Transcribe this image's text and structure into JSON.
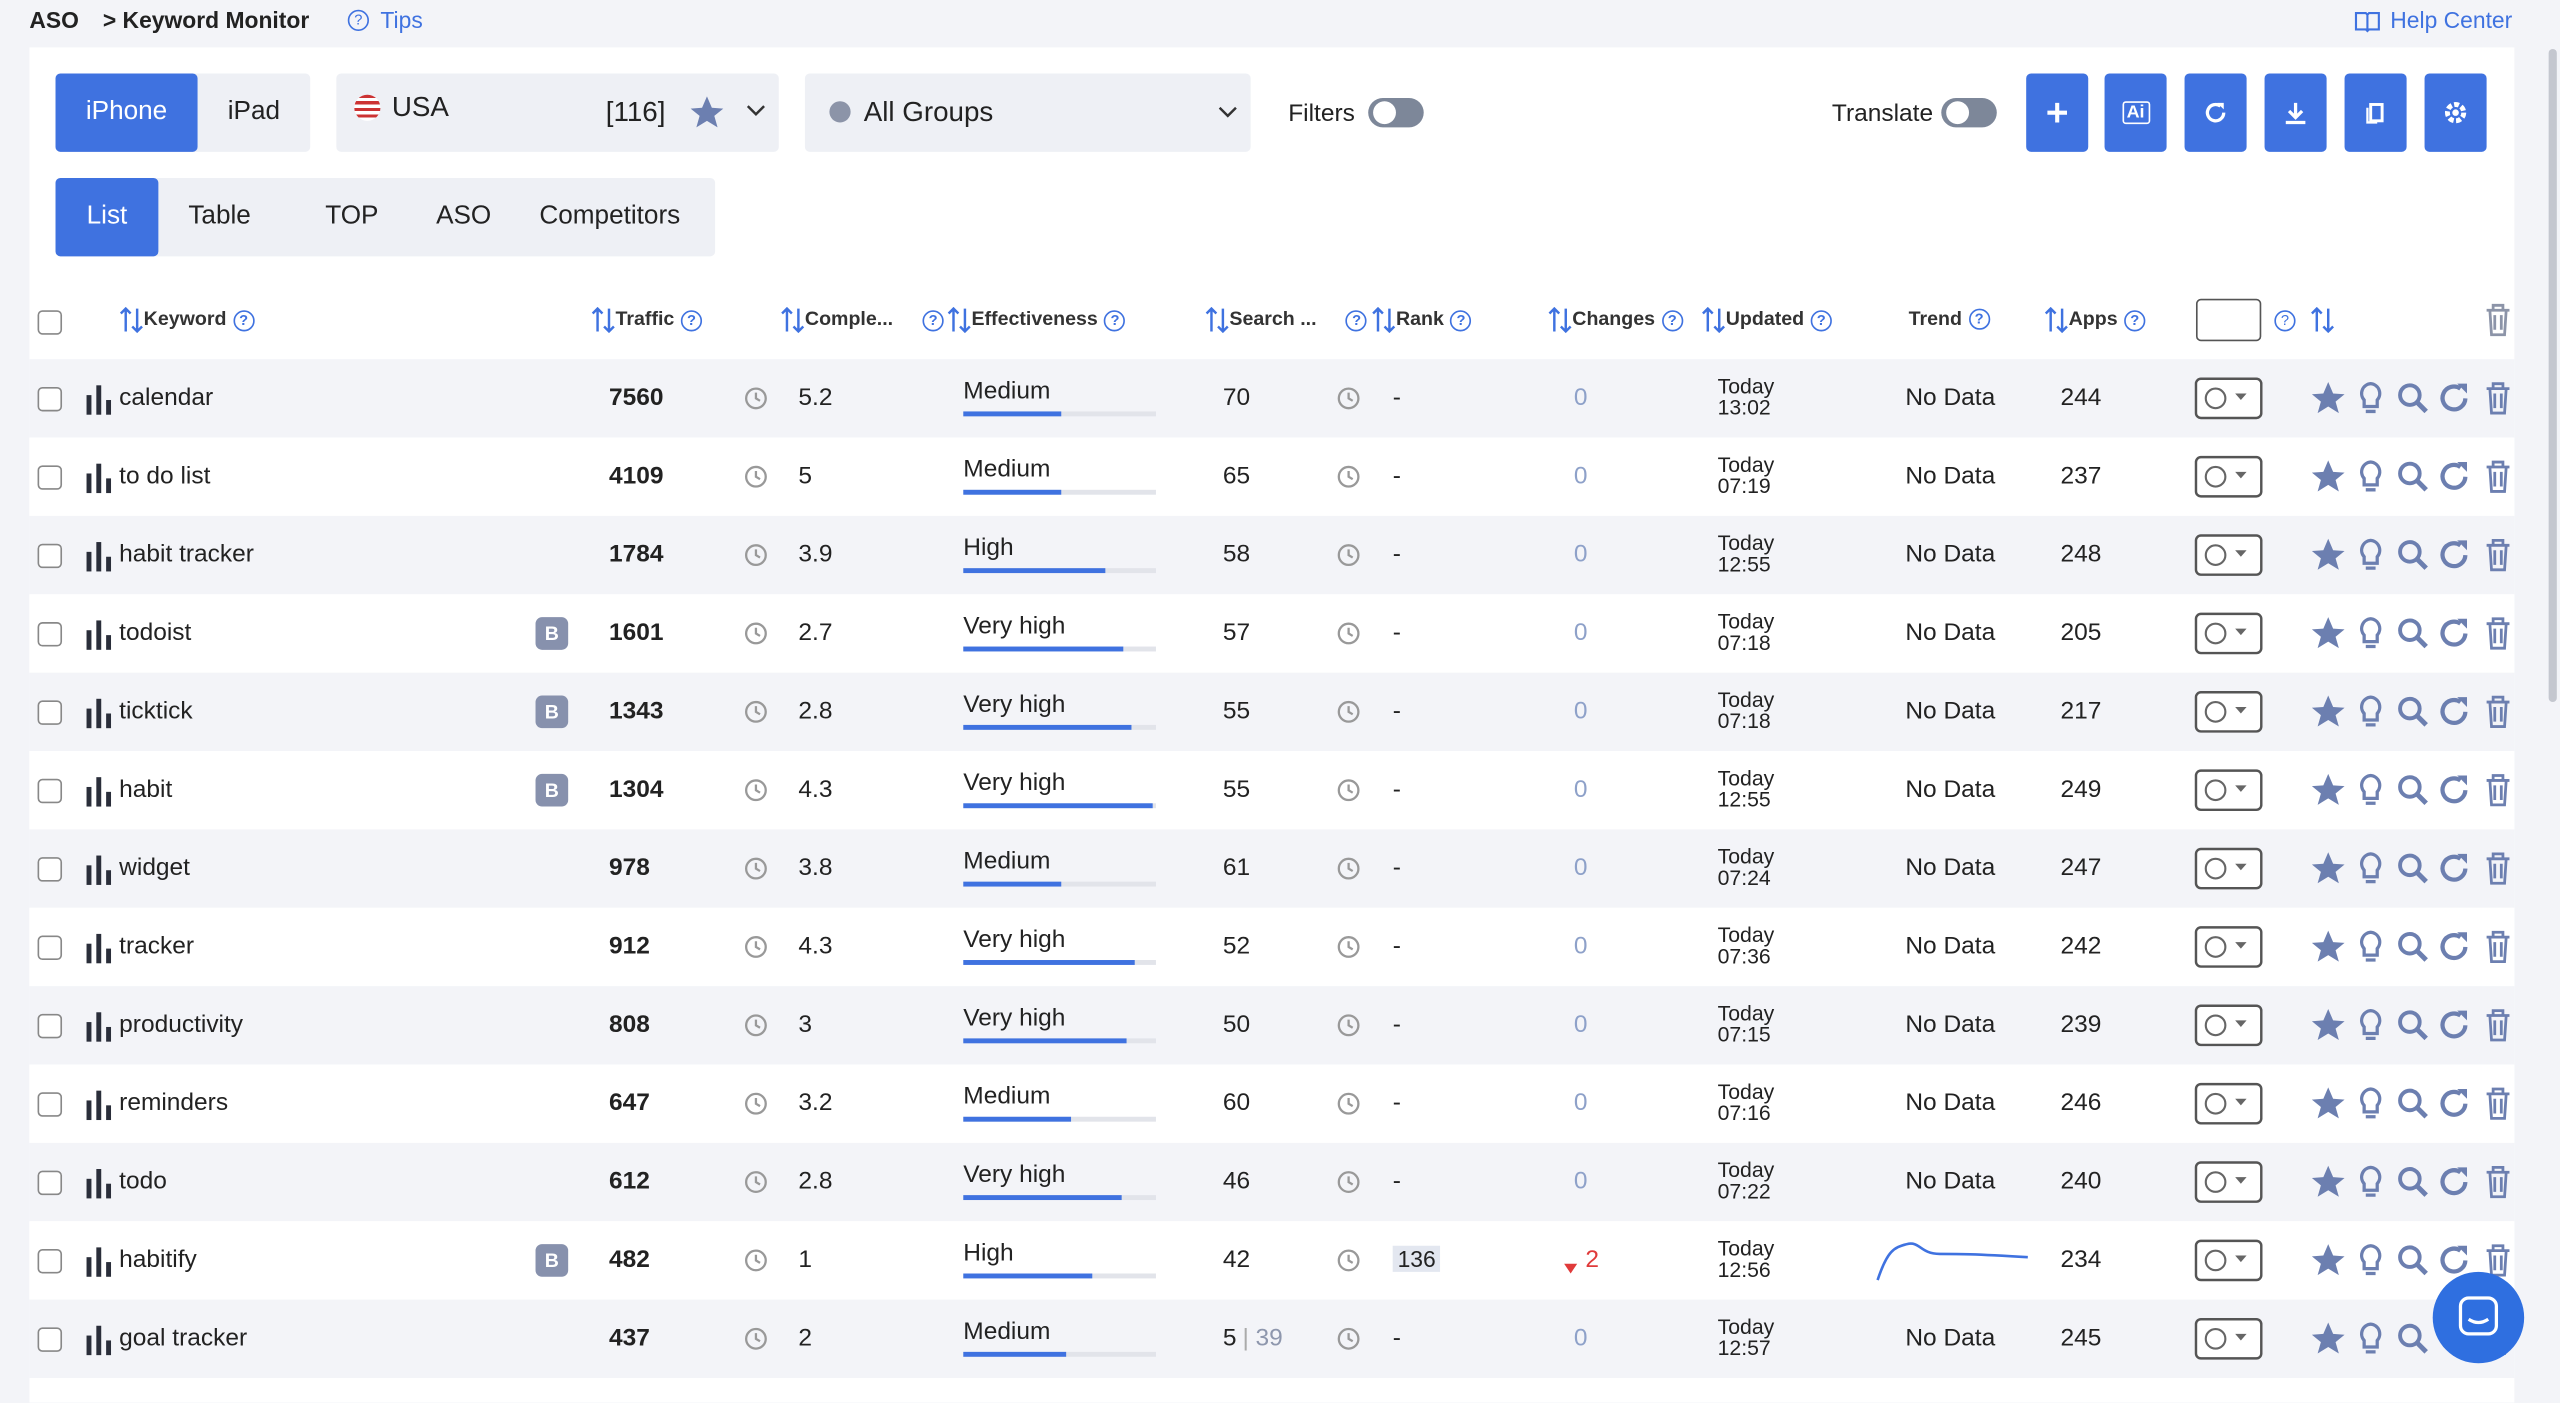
{
  "breadcrumb": {
    "root": "ASO",
    "page": "> Keyword Monitor",
    "tips": "Tips",
    "help": "Help Center"
  },
  "toolbar": {
    "devices": [
      "iPhone",
      "iPad"
    ],
    "country": "USA",
    "count": "[116]",
    "group": "All Groups",
    "filters": "Filters",
    "translate": "Translate",
    "ai": "Ai"
  },
  "tabs": [
    "List",
    "Table",
    "TOP",
    "ASO",
    "Competitors"
  ],
  "table": {
    "columns": [
      "Keyword",
      "Traffic",
      "Comple...",
      "Effectiveness",
      "Search ...",
      "Rank",
      "Changes",
      "Updated",
      "Trend",
      "Apps"
    ],
    "rows": [
      {
        "keyword": "calendar",
        "traffic": 7560,
        "complexity": 5.2,
        "effectiveness": "Medium",
        "effectiveness_bar": 51,
        "search": 70,
        "rank": "-",
        "changes": 0,
        "updated_day": "Today",
        "updated_time": "13:02",
        "trend": "No Data",
        "apps": 244
      },
      {
        "keyword": "to do list",
        "traffic": 4109,
        "complexity": 5,
        "effectiveness": "Medium",
        "effectiveness_bar": 51,
        "search": 65,
        "rank": "-",
        "changes": 0,
        "updated_day": "Today",
        "updated_time": "07:19",
        "trend": "No Data",
        "apps": 237
      },
      {
        "keyword": "habit tracker",
        "traffic": 1784,
        "complexity": 3.9,
        "effectiveness": "High",
        "effectiveness_bar": 74,
        "search": 58,
        "rank": "-",
        "changes": 0,
        "updated_day": "Today",
        "updated_time": "12:55",
        "trend": "No Data",
        "apps": 248
      },
      {
        "keyword": "todoist",
        "badge": "B",
        "traffic": 1601,
        "complexity": 2.7,
        "effectiveness": "Very high",
        "effectiveness_bar": 83,
        "search": 57,
        "rank": "-",
        "changes": 0,
        "updated_day": "Today",
        "updated_time": "07:18",
        "trend": "No Data",
        "apps": 205
      },
      {
        "keyword": "ticktick",
        "badge": "B",
        "traffic": 1343,
        "complexity": 2.8,
        "effectiveness": "Very high",
        "effectiveness_bar": 87,
        "search": 55,
        "rank": "-",
        "changes": 0,
        "updated_day": "Today",
        "updated_time": "07:18",
        "trend": "No Data",
        "apps": 217
      },
      {
        "keyword": "habit",
        "badge": "B",
        "traffic": 1304,
        "complexity": 4.3,
        "effectiveness": "Very high",
        "effectiveness_bar": 98,
        "search": 55,
        "rank": "-",
        "changes": 0,
        "updated_day": "Today",
        "updated_time": "12:55",
        "trend": "No Data",
        "apps": 249
      },
      {
        "keyword": "widget",
        "traffic": 978,
        "complexity": 3.8,
        "effectiveness": "Medium",
        "effectiveness_bar": 51,
        "search": 61,
        "rank": "-",
        "changes": 0,
        "updated_day": "Today",
        "updated_time": "07:24",
        "trend": "No Data",
        "apps": 247
      },
      {
        "keyword": "tracker",
        "traffic": 912,
        "complexity": 4.3,
        "effectiveness": "Very high",
        "effectiveness_bar": 89,
        "search": 52,
        "rank": "-",
        "changes": 0,
        "updated_day": "Today",
        "updated_time": "07:36",
        "trend": "No Data",
        "apps": 242
      },
      {
        "keyword": "productivity",
        "traffic": 808,
        "complexity": 3,
        "effectiveness": "Very high",
        "effectiveness_bar": 85,
        "search": 50,
        "rank": "-",
        "changes": 0,
        "updated_day": "Today",
        "updated_time": "07:15",
        "trend": "No Data",
        "apps": 239
      },
      {
        "keyword": "reminders",
        "traffic": 647,
        "complexity": 3.2,
        "effectiveness": "Medium",
        "effectiveness_bar": 56,
        "search": 60,
        "rank": "-",
        "changes": 0,
        "updated_day": "Today",
        "updated_time": "07:16",
        "trend": "No Data",
        "apps": 246
      },
      {
        "keyword": "todo",
        "traffic": 612,
        "complexity": 2.8,
        "effectiveness": "Very high",
        "effectiveness_bar": 82,
        "search": 46,
        "rank": "-",
        "changes": 0,
        "updated_day": "Today",
        "updated_time": "07:22",
        "trend": "No Data",
        "apps": 240
      },
      {
        "keyword": "habitify",
        "badge": "B",
        "traffic": 482,
        "complexity": 1,
        "effectiveness": "High",
        "effectiveness_bar": 67,
        "search": 42,
        "rank": 136,
        "changes": 2,
        "updated_day": "Today",
        "updated_time": "12:56",
        "apps": 234
      },
      {
        "keyword": "goal tracker",
        "traffic": 437,
        "complexity": 2,
        "effectiveness": "Medium",
        "effectiveness_bar": 53,
        "search": 5,
        "search_extra": 39,
        "rank": "-",
        "changes": 0,
        "updated_day": "Today",
        "updated_time": "12:57",
        "trend": "No Data",
        "apps": 245
      }
    ]
  }
}
